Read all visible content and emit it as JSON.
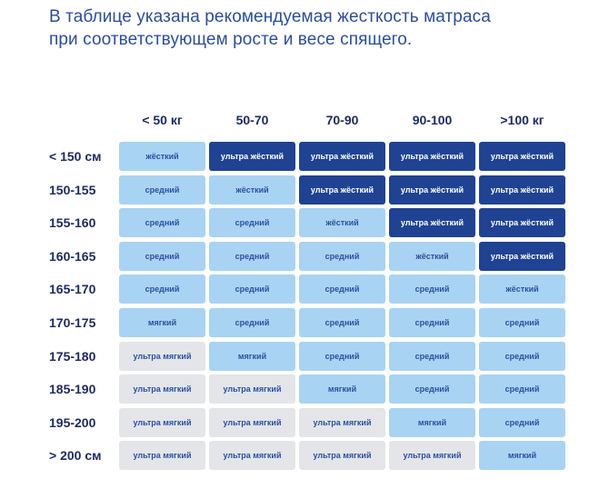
{
  "intro": {
    "line1": "В таблице указана рекомендуемая жесткость матраса",
    "line2": "при соответствующем росте и весе спящего."
  },
  "weights": [
    "< 50 кг",
    "50-70",
    "70-90",
    "90-100",
    ">100 кг"
  ],
  "rows": [
    {
      "height": "< 150 см",
      "cells": [
        {
          "label": "жёсткий",
          "level": "hard"
        },
        {
          "label": "ультра жёсткий",
          "level": "uhard"
        },
        {
          "label": "ультра жёсткий",
          "level": "uhard"
        },
        {
          "label": "ультра жёсткий",
          "level": "uhard"
        },
        {
          "label": "ультра жёсткий",
          "level": "uhard"
        }
      ]
    },
    {
      "height": "150-155",
      "cells": [
        {
          "label": "средний",
          "level": "medium"
        },
        {
          "label": "жёсткий",
          "level": "hard"
        },
        {
          "label": "ультра жёсткий",
          "level": "uhard"
        },
        {
          "label": "ультра жёсткий",
          "level": "uhard"
        },
        {
          "label": "ультра жёсткий",
          "level": "uhard"
        }
      ]
    },
    {
      "height": "155-160",
      "cells": [
        {
          "label": "средний",
          "level": "medium"
        },
        {
          "label": "средний",
          "level": "medium"
        },
        {
          "label": "жёсткий",
          "level": "hard"
        },
        {
          "label": "ультра жёсткий",
          "level": "uhard"
        },
        {
          "label": "ультра жёсткий",
          "level": "uhard"
        }
      ]
    },
    {
      "height": "160-165",
      "cells": [
        {
          "label": "средний",
          "level": "medium"
        },
        {
          "label": "средний",
          "level": "medium"
        },
        {
          "label": "средний",
          "level": "medium"
        },
        {
          "label": "жёсткий",
          "level": "hard"
        },
        {
          "label": "ультра жёсткий",
          "level": "uhard"
        }
      ]
    },
    {
      "height": "165-170",
      "cells": [
        {
          "label": "средний",
          "level": "medium"
        },
        {
          "label": "средний",
          "level": "medium"
        },
        {
          "label": "средний",
          "level": "medium"
        },
        {
          "label": "средний",
          "level": "medium"
        },
        {
          "label": "жёсткий",
          "level": "hard"
        }
      ]
    },
    {
      "height": "170-175",
      "cells": [
        {
          "label": "мягкий",
          "level": "soft"
        },
        {
          "label": "средний",
          "level": "medium"
        },
        {
          "label": "средний",
          "level": "medium"
        },
        {
          "label": "средний",
          "level": "medium"
        },
        {
          "label": "средний",
          "level": "medium"
        }
      ]
    },
    {
      "height": "175-180",
      "cells": [
        {
          "label": "ультра мягкий",
          "level": "usoft"
        },
        {
          "label": "мягкий",
          "level": "soft"
        },
        {
          "label": "средний",
          "level": "medium"
        },
        {
          "label": "средний",
          "level": "medium"
        },
        {
          "label": "средний",
          "level": "medium"
        }
      ]
    },
    {
      "height": "185-190",
      "cells": [
        {
          "label": "ультра мягкий",
          "level": "usoft"
        },
        {
          "label": "ультра мягкий",
          "level": "usoft"
        },
        {
          "label": "мягкий",
          "level": "soft"
        },
        {
          "label": "средний",
          "level": "medium"
        },
        {
          "label": "средний",
          "level": "medium"
        }
      ]
    },
    {
      "height": "195-200",
      "cells": [
        {
          "label": "ультра мягкий",
          "level": "usoft"
        },
        {
          "label": "ультра мягкий",
          "level": "usoft"
        },
        {
          "label": "ультра мягкий",
          "level": "usoft"
        },
        {
          "label": "мягкий",
          "level": "soft"
        },
        {
          "label": "средний",
          "level": "medium"
        }
      ]
    },
    {
      "height": "> 200 см",
      "cells": [
        {
          "label": "ультра мягкий",
          "level": "usoft"
        },
        {
          "label": "ультра мягкий",
          "level": "usoft"
        },
        {
          "label": "ультра мягкий",
          "level": "usoft"
        },
        {
          "label": "ультра мягкий",
          "level": "usoft"
        },
        {
          "label": "мягкий",
          "level": "soft"
        }
      ]
    }
  ],
  "colors": {
    "title_blue": "#2a4ea1",
    "header_navy": "#1e2b63",
    "light_blue_cell": "#a9d3f2",
    "dark_blue_cell": "#1f4293",
    "gray_cell": "#e3e5e9"
  }
}
